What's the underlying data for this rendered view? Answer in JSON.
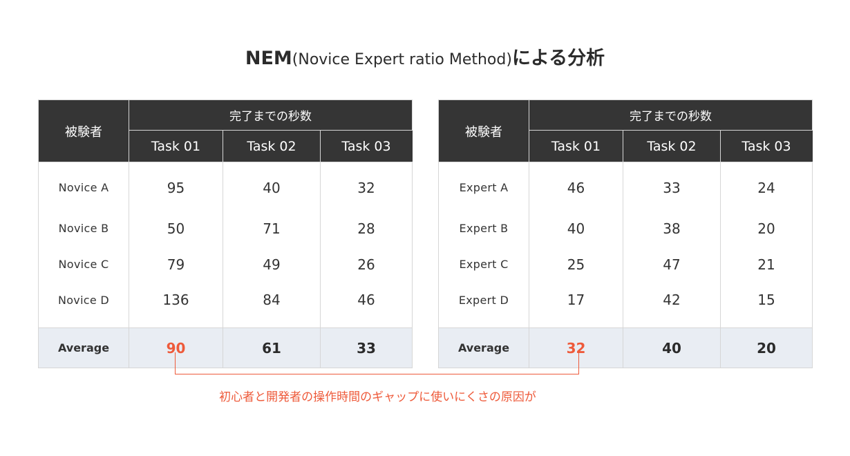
{
  "title": {
    "main": "NEM",
    "sub": "(Novice Expert ratio Method)",
    "suffix": "による分析"
  },
  "tables": [
    {
      "subject_header": "被験者",
      "group_header": "完了までの秒数",
      "task_headers": [
        "Task 01",
        "Task 02",
        "Task 03"
      ],
      "rows": [
        {
          "name": "Novice A",
          "values": [
            "95",
            "40",
            "32"
          ]
        },
        {
          "name": "Novice B",
          "values": [
            "50",
            "71",
            "28"
          ]
        },
        {
          "name": "Novice C",
          "values": [
            "79",
            "49",
            "26"
          ]
        },
        {
          "name": "Novice D",
          "values": [
            "136",
            "84",
            "46"
          ]
        }
      ],
      "average": {
        "label": "Average",
        "values": [
          "90",
          "61",
          "33"
        ]
      }
    },
    {
      "subject_header": "被験者",
      "group_header": "完了までの秒数",
      "task_headers": [
        "Task 01",
        "Task 02",
        "Task 03"
      ],
      "rows": [
        {
          "name": "Expert A",
          "values": [
            "46",
            "33",
            "24"
          ]
        },
        {
          "name": "Expert B",
          "values": [
            "40",
            "38",
            "20"
          ]
        },
        {
          "name": "Expert C",
          "values": [
            "25",
            "47",
            "21"
          ]
        },
        {
          "name": "Expert D",
          "values": [
            "17",
            "42",
            "15"
          ]
        }
      ],
      "average": {
        "label": "Average",
        "values": [
          "32",
          "40",
          "20"
        ]
      }
    }
  ],
  "annotation": {
    "text": "初心者と開発者の操作時間のギャップに使いにくさの原因が",
    "color": "#ee5a3a"
  },
  "colors": {
    "header_bg": "#353535",
    "average_bg": "#e9edf3",
    "highlight": "#ee5a3a"
  }
}
